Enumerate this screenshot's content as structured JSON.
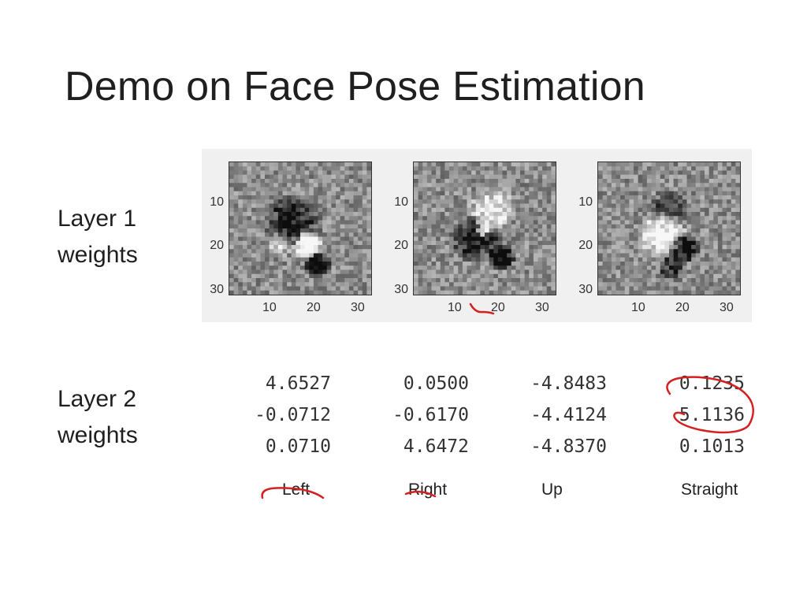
{
  "slide": {
    "title": "Demo on Face Pose Estimation",
    "layer1_label": [
      "Layer 1",
      "weights"
    ],
    "layer2_label": [
      "Layer 2",
      "weights"
    ]
  },
  "layer1_panes": [
    {
      "yticks": [
        "10",
        "20",
        "30"
      ],
      "xticks": [
        "10",
        "20",
        "30"
      ]
    },
    {
      "yticks": [
        "10",
        "20",
        "30"
      ],
      "xticks": [
        "10",
        "20",
        "30"
      ]
    },
    {
      "yticks": [
        "10",
        "20",
        "30"
      ],
      "xticks": [
        "10",
        "20",
        "30"
      ]
    }
  ],
  "layer2_matrix": [
    [
      "4.6527",
      "0.0500",
      "-4.8483",
      "0.1235"
    ],
    [
      "-0.0712",
      "-0.6170",
      "-4.4124",
      "5.1136"
    ],
    [
      "0.0710",
      "4.6472",
      "-4.8370",
      "0.1013"
    ]
  ],
  "column_labels": [
    "Left",
    "Right",
    "Up",
    "Straight"
  ],
  "colors": {
    "ink": "#d42020",
    "panel_bg": "#f0f0f0"
  }
}
